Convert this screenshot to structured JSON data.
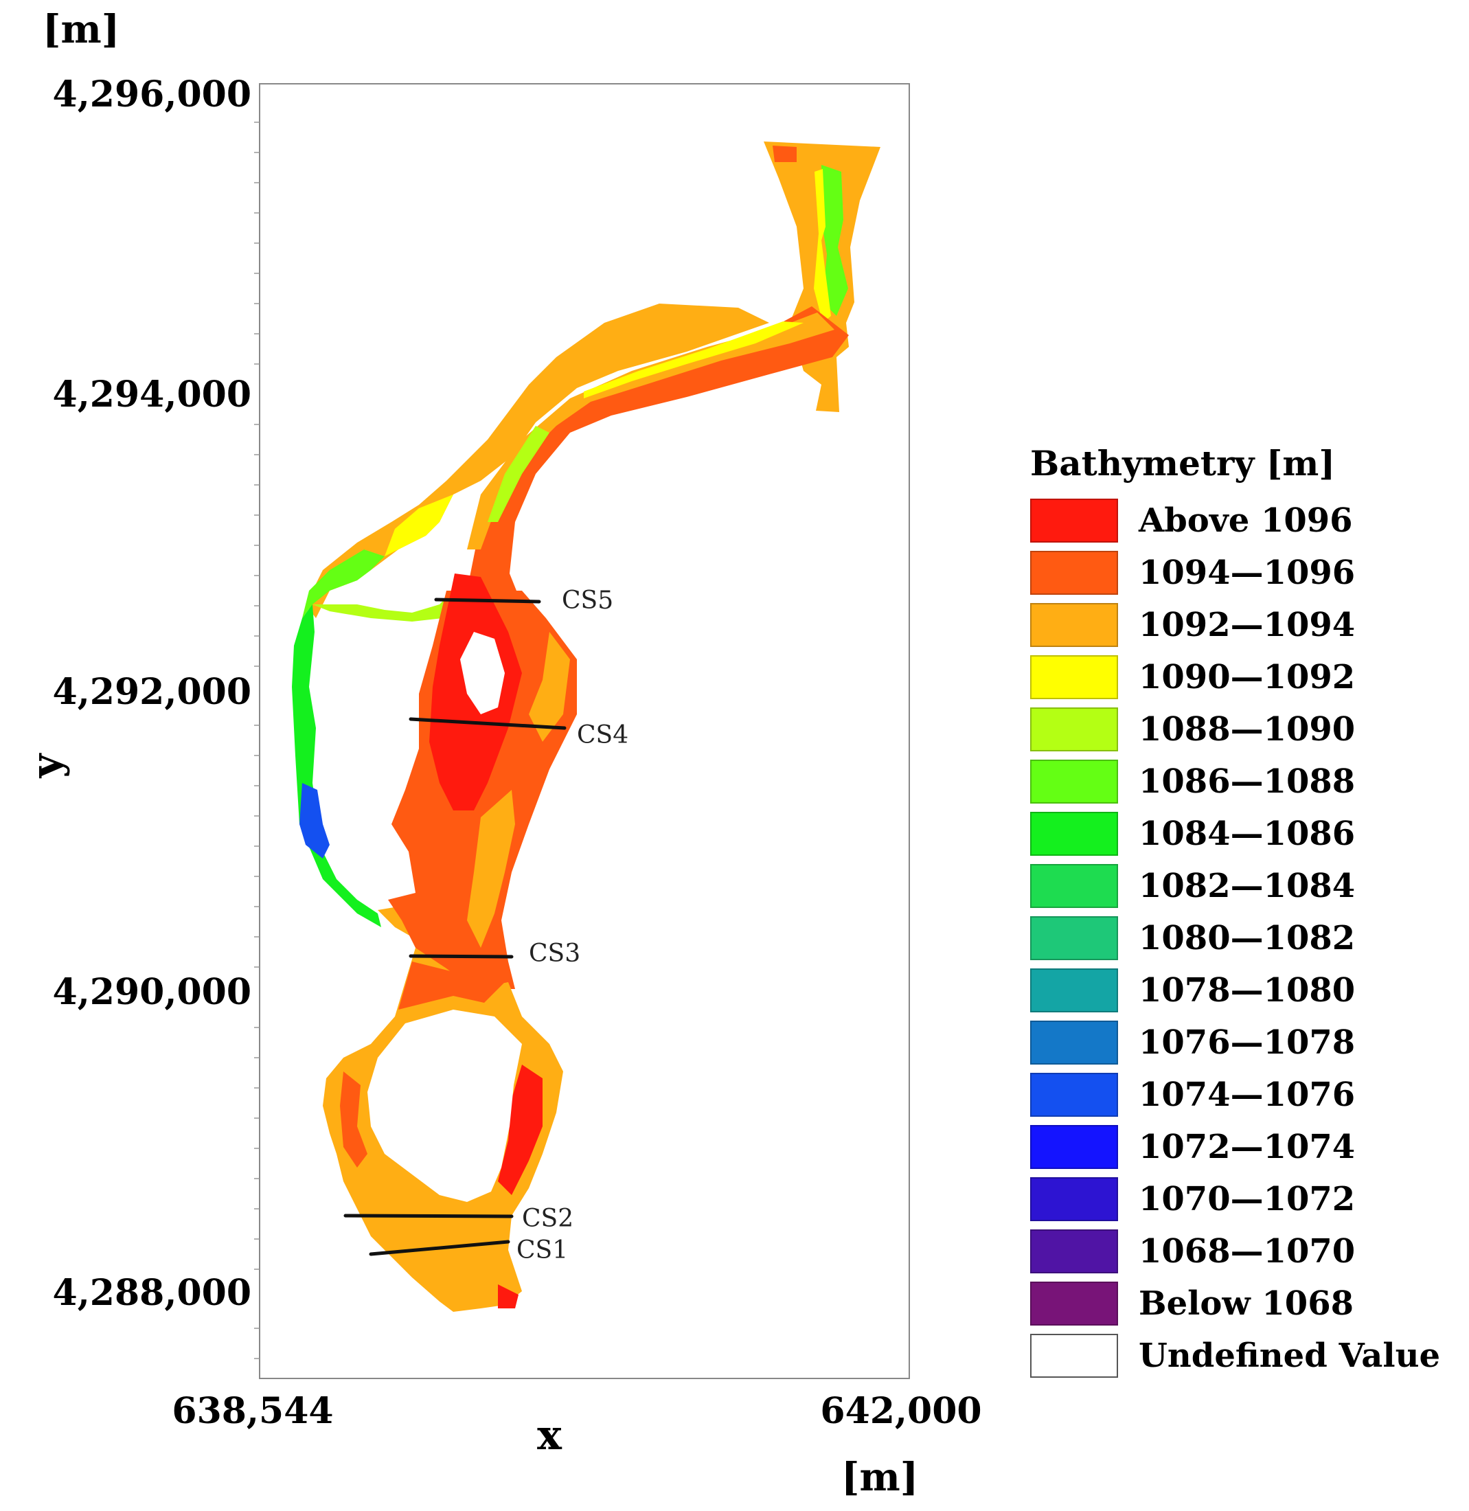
{
  "units_top": "[m]",
  "units_bottom": "[m]",
  "axes": {
    "x_label": "x",
    "y_label": "y",
    "x_ticks": [
      "638,544",
      "642,000"
    ],
    "y_ticks": [
      "4,296,000",
      "4,294,000",
      "4,292,000",
      "4,290,000",
      "4,288,000"
    ]
  },
  "cross_sections": [
    {
      "id": "cs5",
      "label": "CS5"
    },
    {
      "id": "cs4",
      "label": "CS4"
    },
    {
      "id": "cs3",
      "label": "CS3"
    },
    {
      "id": "cs2",
      "label": "CS2"
    },
    {
      "id": "cs1",
      "label": "CS1"
    }
  ],
  "legend": {
    "title": "Bathymetry [m]",
    "items": [
      {
        "label": "Above 1096",
        "color": "#ff1a0e"
      },
      {
        "label": "1094—1096",
        "color": "#ff5a12"
      },
      {
        "label": "1092—1094",
        "color": "#ffae14"
      },
      {
        "label": "1090—1092",
        "color": "#ffff00"
      },
      {
        "label": "1088—1090",
        "color": "#b4ff14"
      },
      {
        "label": "1086—1088",
        "color": "#64ff14"
      },
      {
        "label": "1084—1086",
        "color": "#14f01e"
      },
      {
        "label": "1082—1084",
        "color": "#1edc50"
      },
      {
        "label": "1080—1082",
        "color": "#1ec878"
      },
      {
        "label": "1078—1080",
        "color": "#14a5a5"
      },
      {
        "label": "1076—1078",
        "color": "#1478c8"
      },
      {
        "label": "1074—1076",
        "color": "#1450f0"
      },
      {
        "label": "1072—1074",
        "color": "#1414ff"
      },
      {
        "label": "1070—1072",
        "color": "#2d14d2"
      },
      {
        "label": "1068—1070",
        "color": "#5014a5"
      },
      {
        "label": "Below 1068",
        "color": "#781478"
      },
      {
        "label": "Undefined Value",
        "color": "#ffffff"
      }
    ]
  }
}
